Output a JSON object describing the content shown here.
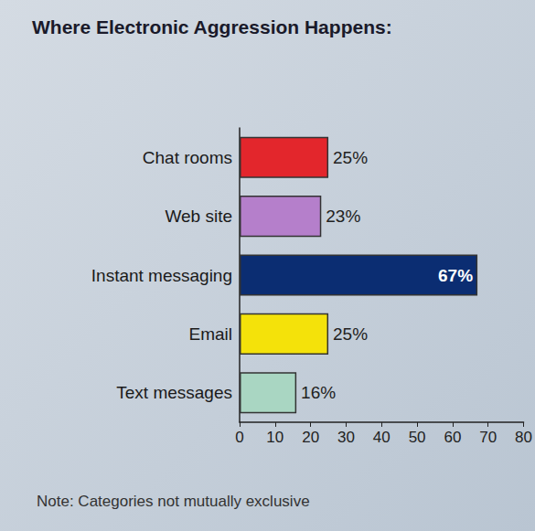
{
  "chart_data": {
    "type": "bar",
    "orientation": "horizontal",
    "title": "Where Electronic Aggression Happens:",
    "categories": [
      "Chat rooms",
      "Web site",
      "Instant messaging",
      "Email",
      "Text messages"
    ],
    "values": [
      25,
      23,
      67,
      25,
      16
    ],
    "value_labels": [
      "25%",
      "23%",
      "67%",
      "25%",
      "16%"
    ],
    "colors": [
      "#e3262c",
      "#b57fcb",
      "#0b2d72",
      "#f4e20a",
      "#a9d6c2"
    ],
    "xlim": [
      0,
      80
    ],
    "xticks": [
      0,
      10,
      20,
      30,
      40,
      50,
      60,
      70,
      80
    ],
    "grid": false,
    "data_labels": true,
    "annotations": [
      "Note: Categories not mutually exclusive"
    ]
  }
}
